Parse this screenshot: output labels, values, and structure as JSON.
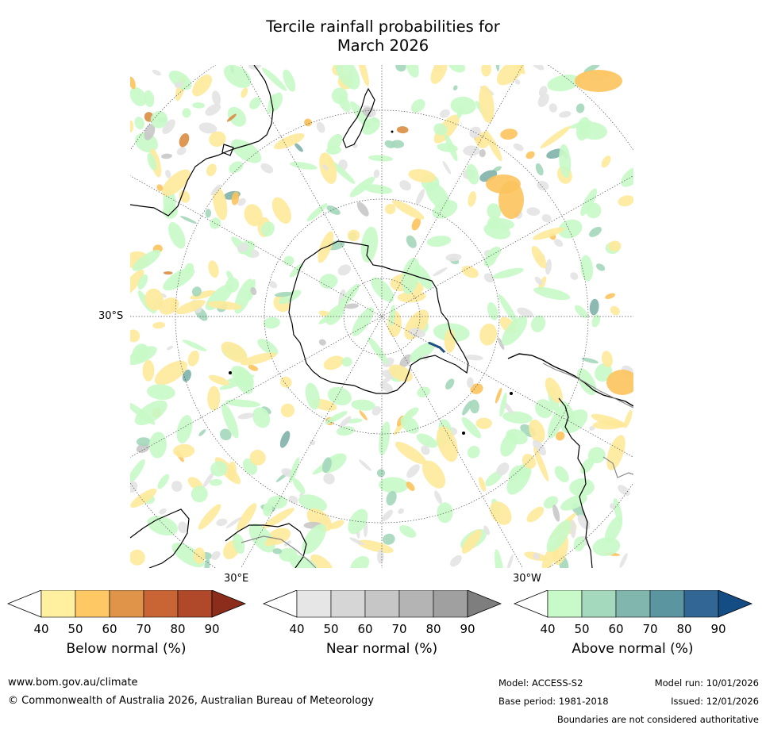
{
  "title": {
    "line1": "Tercile rainfall probabilities for",
    "line2": "March 2026"
  },
  "map": {
    "projection": "south polar stereographic",
    "labels": {
      "lat_30s": "30°S",
      "lon_30e": "30°E",
      "lon_30w": "30°W"
    },
    "colors": {
      "below_light": "#fee99a",
      "below_mid": "#fcc35d",
      "below_dark": "#d98d44",
      "near": "#e3e3e3",
      "near_dark": "#c8c8c8",
      "above_light": "#c8f9c8",
      "above_mid": "#a4d7bb",
      "above_dark": "#7fb3aa",
      "coast": "#000000",
      "boundary": "#888888"
    }
  },
  "colorbars": [
    {
      "title": "Below normal (%)",
      "ticks": [
        "40",
        "50",
        "60",
        "70",
        "80",
        "90"
      ],
      "colors": [
        "#fff0a0",
        "#fec964",
        "#e0944a",
        "#c96434",
        "#b0482a",
        "#8c2d1b"
      ]
    },
    {
      "title": "Near normal (%)",
      "ticks": [
        "40",
        "50",
        "60",
        "70",
        "80",
        "90"
      ],
      "colors": [
        "#e6e6e6",
        "#d6d6d6",
        "#c6c6c6",
        "#b4b4b4",
        "#a0a0a0",
        "#7e7e7e"
      ]
    },
    {
      "title": "Above normal (%)",
      "ticks": [
        "40",
        "50",
        "60",
        "70",
        "80",
        "90"
      ],
      "colors": [
        "#c8f9c8",
        "#a5d9bd",
        "#80b6ad",
        "#5b95a0",
        "#316695",
        "#144d84"
      ]
    }
  ],
  "footer": {
    "url": "www.bom.gov.au/climate",
    "copyright": "© Commonwealth of Australia 2026, Australian Bureau of Meteorology",
    "model": "Model: ACCESS-S2",
    "base_period": "Base period: 1981-2018",
    "model_run": "Model run: 10/01/2026",
    "issued": "Issued: 12/01/2026",
    "disclaimer": "Boundaries are not considered authoritative"
  }
}
